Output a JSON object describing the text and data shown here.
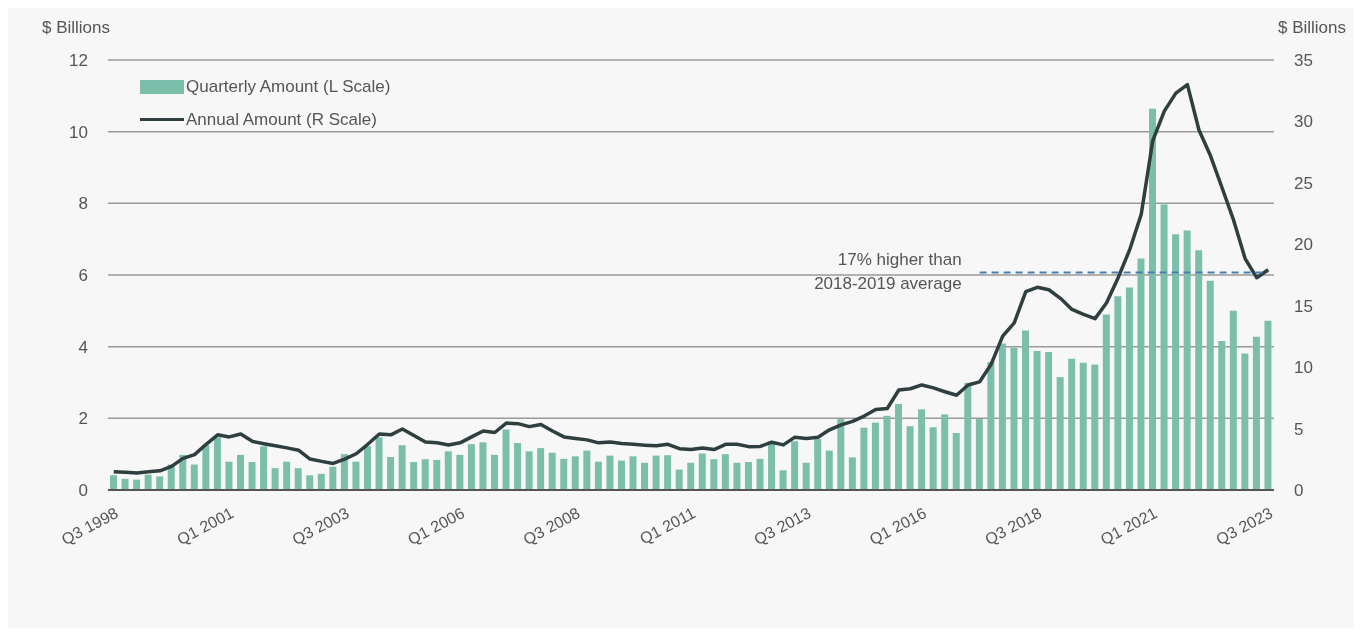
{
  "chart_data": {
    "type": "bar",
    "ylabel": "$ Billions",
    "y2label": "$ Billions",
    "categories": [
      "Q3 1998",
      null,
      null,
      null,
      null,
      null,
      null,
      null,
      null,
      null,
      "Q1 2001",
      null,
      null,
      null,
      null,
      null,
      null,
      null,
      null,
      null,
      "Q3 2003",
      null,
      null,
      null,
      null,
      null,
      null,
      null,
      null,
      null,
      "Q1 2006",
      null,
      null,
      null,
      null,
      null,
      null,
      null,
      null,
      null,
      "Q3 2008",
      null,
      null,
      null,
      null,
      null,
      null,
      null,
      null,
      null,
      "Q1 2011",
      null,
      null,
      null,
      null,
      null,
      null,
      null,
      null,
      null,
      "Q3 2013",
      null,
      null,
      null,
      null,
      null,
      null,
      null,
      null,
      null,
      "Q1 2016",
      null,
      null,
      null,
      null,
      null,
      null,
      null,
      null,
      null,
      "Q3 2018",
      null,
      null,
      null,
      null,
      null,
      null,
      null,
      null,
      null,
      "Q1 2021",
      null,
      null,
      null,
      null,
      null,
      null,
      null,
      null,
      null,
      "Q3 2023"
    ],
    "series": [
      {
        "name": "Quarterly Amount (L Scale)",
        "color": "#7bbfaa",
        "values": [
          0.41,
          0.31,
          0.29,
          0.43,
          0.38,
          0.71,
          0.98,
          0.71,
          1.25,
          1.47,
          0.79,
          0.98,
          0.78,
          1.22,
          0.61,
          0.79,
          0.61,
          0.41,
          0.45,
          0.65,
          1.0,
          0.79,
          1.22,
          1.47,
          0.92,
          1.25,
          0.78,
          0.86,
          0.84,
          1.08,
          0.98,
          1.28,
          1.33,
          0.98,
          1.69,
          1.31,
          1.08,
          1.17,
          1.04,
          0.87,
          0.94,
          1.1,
          0.79,
          0.96,
          0.82,
          0.94,
          0.76,
          0.96,
          0.97,
          0.57,
          0.76,
          1.02,
          0.86,
          1.0,
          0.76,
          0.78,
          0.87,
          1.36,
          0.55,
          1.36,
          0.76,
          1.42,
          1.1,
          1.98,
          0.91,
          1.74,
          1.88,
          2.07,
          2.4,
          1.78,
          2.25,
          1.75,
          2.11,
          1.59,
          2.99,
          1.98,
          3.57,
          4.09,
          3.97,
          4.45,
          3.88,
          3.85,
          3.15,
          3.66,
          3.55,
          3.5,
          4.9,
          5.41,
          5.65,
          6.46,
          10.64,
          7.97,
          7.14,
          7.24,
          6.69,
          5.84,
          4.16,
          5.0,
          3.81,
          4.28,
          4.72
        ]
      },
      {
        "name": "Annual Amount (R Scale)",
        "type": "line",
        "axis": "y2",
        "color": "#2f3e3e",
        "values": [
          1.49,
          1.44,
          1.39,
          1.49,
          1.56,
          1.92,
          2.57,
          2.88,
          3.72,
          4.49,
          4.32,
          4.56,
          3.96,
          3.77,
          3.6,
          3.43,
          3.24,
          2.52,
          2.33,
          2.16,
          2.52,
          2.95,
          3.72,
          4.56,
          4.49,
          4.97,
          4.44,
          3.9,
          3.84,
          3.67,
          3.84,
          4.32,
          4.8,
          4.68,
          5.45,
          5.4,
          5.16,
          5.33,
          4.8,
          4.32,
          4.2,
          4.08,
          3.84,
          3.91,
          3.79,
          3.72,
          3.65,
          3.6,
          3.72,
          3.36,
          3.29,
          3.41,
          3.29,
          3.72,
          3.72,
          3.53,
          3.55,
          3.89,
          3.67,
          4.3,
          4.2,
          4.3,
          4.9,
          5.3,
          5.59,
          6.02,
          6.55,
          6.63,
          8.14,
          8.24,
          8.55,
          8.31,
          8.0,
          7.71,
          8.55,
          8.8,
          10.24,
          12.53,
          13.61,
          16.14,
          16.5,
          16.3,
          15.6,
          14.7,
          14.3,
          13.95,
          15.24,
          17.28,
          19.56,
          22.44,
          28.44,
          30.84,
          32.3,
          33.0,
          29.3,
          27.2,
          24.6,
          21.96,
          18.84,
          17.28,
          17.93
        ]
      }
    ],
    "ylim": [
      0,
      12
    ],
    "yticks": [
      0,
      2,
      4,
      6,
      8,
      10,
      12
    ],
    "y2lim": [
      0,
      35
    ],
    "y2ticks": [
      0,
      5,
      10,
      15,
      20,
      25,
      30,
      35
    ],
    "ref_lines": [
      {
        "axis": "y2",
        "value": 17.7,
        "label": "17% higher than\n2018-2019 average",
        "color": "#4a7fb0",
        "line_style": "dashed"
      }
    ],
    "grid": "y",
    "legend": "top left"
  }
}
